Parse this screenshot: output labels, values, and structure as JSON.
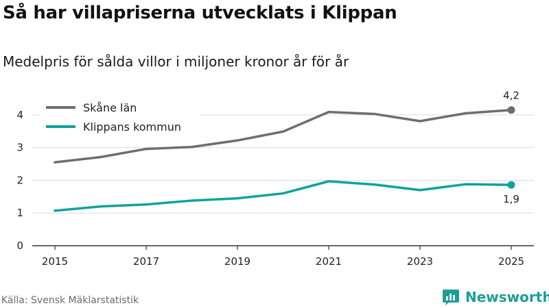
{
  "title": "Så har villapriserna utvecklats i Klippan",
  "subtitle": "Medelpris för sålda villor i miljoner kronor år för år",
  "source": "Källa: Svensk Mäklarstatistik",
  "brand": "Newsworthy",
  "chart_data": {
    "type": "line",
    "title": "Så har villapriserna utvecklats i Klippan",
    "subtitle": "Medelpris för sålda villor i miljoner kronor år för år",
    "xlabel": "",
    "ylabel": "",
    "x": [
      2015,
      2016,
      2017,
      2018,
      2019,
      2020,
      2021,
      2022,
      2023,
      2024,
      2025
    ],
    "x_ticks": [
      2015,
      2017,
      2019,
      2021,
      2023,
      2025
    ],
    "y_ticks": [
      0,
      1,
      2,
      3,
      4
    ],
    "xlim": [
      2015,
      2025
    ],
    "ylim": [
      0,
      4.5
    ],
    "grid": true,
    "legend_position": "top-left",
    "series": [
      {
        "name": "Skåne län",
        "color": "#6e6d73",
        "values": [
          2.55,
          2.71,
          2.96,
          3.02,
          3.22,
          3.49,
          4.09,
          4.03,
          3.81,
          4.05,
          4.15
        ],
        "end_label": "4,2"
      },
      {
        "name": "Klippans kommun",
        "color": "#0fa39a",
        "values": [
          1.07,
          1.2,
          1.26,
          1.38,
          1.45,
          1.6,
          1.97,
          1.87,
          1.7,
          1.88,
          1.86
        ],
        "end_label": "1,9"
      }
    ]
  }
}
